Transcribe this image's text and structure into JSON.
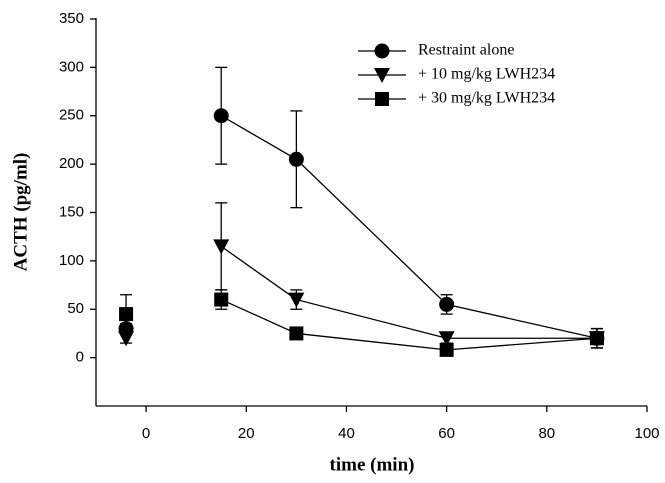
{
  "chart_data": {
    "type": "line",
    "x_label": "time (min)",
    "y_label": "ACTH (pg/ml)",
    "x": [
      15,
      30,
      60,
      90
    ],
    "baseline_x": -4,
    "series": [
      {
        "name": "Restraint alone",
        "marker": "circle",
        "color": "#000000",
        "values": [
          250,
          205,
          55,
          20
        ],
        "errors": [
          50,
          50,
          10,
          10
        ],
        "baseline_value": 30,
        "baseline_error": 5
      },
      {
        "name": "+ 10 mg/kg LWH234",
        "marker": "triangle-down",
        "color": "#000000",
        "values": [
          115,
          60,
          20,
          20
        ],
        "errors": [
          45,
          10,
          5,
          10
        ],
        "baseline_value": 20,
        "baseline_error": 5
      },
      {
        "name": "+ 30 mg/kg LWH234",
        "marker": "square",
        "color": "#000000",
        "values": [
          60,
          25,
          8,
          20
        ],
        "errors": [
          10,
          3,
          3,
          10
        ],
        "baseline_value": 45,
        "baseline_error": 20
      }
    ],
    "xlim": [
      -10,
      100
    ],
    "xticks": [
      0,
      20,
      40,
      60,
      80,
      100
    ],
    "ylim": [
      -50,
      350
    ],
    "yticks": [
      0,
      50,
      100,
      150,
      200,
      250,
      300,
      350
    ],
    "legend": "upper-right",
    "grid": false
  }
}
